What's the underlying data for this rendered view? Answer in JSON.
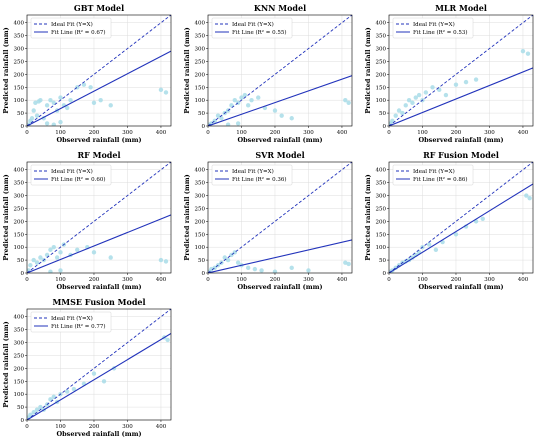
{
  "chart_data": [
    {
      "type": "scatter",
      "title": "GBT Model",
      "xlabel": "Observed rainfall (mm)",
      "ylabel": "Predicted rainfall (mm)",
      "xlim": [
        0,
        430
      ],
      "ylim": [
        0,
        430
      ],
      "xticks": [
        0,
        100,
        200,
        300,
        400
      ],
      "yticks": [
        0,
        50,
        100,
        150,
        200,
        250,
        300,
        350,
        400
      ],
      "grid": true,
      "legend_position": "top-left",
      "series": [
        {
          "name": "Ideal Fit (Y=X)",
          "type": "line",
          "style": "dashed",
          "x": [
            0,
            430
          ],
          "y": [
            0,
            430
          ]
        },
        {
          "name": "Fit Line (R² = 0.67)",
          "type": "line",
          "style": "solid",
          "x": [
            0,
            430
          ],
          "y": [
            0,
            290
          ]
        },
        {
          "type": "scatter",
          "x": [
            5,
            10,
            15,
            20,
            25,
            30,
            35,
            40,
            50,
            60,
            70,
            80,
            90,
            100,
            110,
            120,
            130,
            150,
            170,
            190,
            200,
            220,
            250,
            400,
            415,
            60,
            80,
            100
          ],
          "y": [
            5,
            20,
            30,
            60,
            90,
            40,
            95,
            100,
            30,
            80,
            100,
            90,
            60,
            110,
            80,
            70,
            100,
            150,
            160,
            150,
            90,
            100,
            80,
            140,
            130,
            10,
            5,
            15
          ]
        }
      ]
    },
    {
      "type": "scatter",
      "title": "KNN Model",
      "xlabel": "Observed rainfall (mm)",
      "ylabel": "Predicted rainfall (mm)",
      "xlim": [
        0,
        430
      ],
      "ylim": [
        0,
        430
      ],
      "xticks": [
        0,
        100,
        200,
        300,
        400
      ],
      "yticks": [
        0,
        50,
        100,
        150,
        200,
        250,
        300,
        350,
        400
      ],
      "grid": true,
      "legend_position": "top-left",
      "series": [
        {
          "name": "Ideal Fit (Y=X)",
          "type": "line",
          "style": "dashed",
          "x": [
            0,
            430
          ],
          "y": [
            0,
            430
          ]
        },
        {
          "name": "Fit Line (R² = 0.55)",
          "type": "line",
          "style": "solid",
          "x": [
            0,
            430
          ],
          "y": [
            0,
            195
          ]
        },
        {
          "type": "scatter",
          "x": [
            5,
            10,
            20,
            30,
            40,
            50,
            60,
            70,
            80,
            90,
            100,
            110,
            120,
            130,
            150,
            170,
            200,
            220,
            250,
            410,
            420,
            60,
            90
          ],
          "y": [
            5,
            10,
            20,
            40,
            30,
            50,
            60,
            80,
            100,
            90,
            110,
            120,
            80,
            100,
            110,
            70,
            60,
            40,
            30,
            100,
            90,
            5,
            10
          ]
        }
      ]
    },
    {
      "type": "scatter",
      "title": "MLR Model",
      "xlabel": "Observed rainfall (mm)",
      "ylabel": "Predicted rainfall (mm)",
      "xlim": [
        0,
        430
      ],
      "ylim": [
        0,
        430
      ],
      "xticks": [
        0,
        100,
        200,
        300,
        400
      ],
      "yticks": [
        0,
        50,
        100,
        150,
        200,
        250,
        300,
        350,
        400
      ],
      "grid": true,
      "legend_position": "top-left",
      "series": [
        {
          "name": "Ideal Fit (Y=X)",
          "type": "line",
          "style": "dashed",
          "x": [
            0,
            430
          ],
          "y": [
            0,
            430
          ]
        },
        {
          "name": "Fit Line (R² = 0.53)",
          "type": "line",
          "style": "solid",
          "x": [
            0,
            430
          ],
          "y": [
            0,
            225
          ]
        },
        {
          "type": "scatter",
          "x": [
            5,
            10,
            20,
            30,
            40,
            50,
            60,
            70,
            80,
            90,
            100,
            110,
            130,
            150,
            170,
            200,
            230,
            260,
            400,
            415
          ],
          "y": [
            10,
            20,
            40,
            60,
            50,
            80,
            100,
            90,
            110,
            120,
            100,
            130,
            150,
            140,
            120,
            160,
            170,
            180,
            290,
            280
          ]
        }
      ]
    },
    {
      "type": "scatter",
      "title": "RF Model",
      "xlabel": "Observed rainfall (mm)",
      "ylabel": "Predicted rainfall (mm)",
      "xlim": [
        0,
        430
      ],
      "ylim": [
        0,
        430
      ],
      "xticks": [
        0,
        100,
        200,
        300,
        400
      ],
      "yticks": [
        0,
        50,
        100,
        150,
        200,
        250,
        300,
        350,
        400
      ],
      "grid": true,
      "legend_position": "top-left",
      "series": [
        {
          "name": "Ideal Fit (Y=X)",
          "type": "line",
          "style": "dashed",
          "x": [
            0,
            430
          ],
          "y": [
            0,
            430
          ]
        },
        {
          "name": "Fit Line (R² = 0.60)",
          "type": "line",
          "style": "solid",
          "x": [
            0,
            430
          ],
          "y": [
            0,
            225
          ]
        },
        {
          "type": "scatter",
          "x": [
            5,
            10,
            20,
            30,
            40,
            50,
            60,
            70,
            80,
            90,
            100,
            110,
            130,
            150,
            180,
            200,
            250,
            400,
            415,
            70,
            100
          ],
          "y": [
            10,
            30,
            50,
            40,
            60,
            50,
            70,
            90,
            100,
            60,
            80,
            110,
            70,
            90,
            100,
            80,
            60,
            50,
            45,
            5,
            10
          ]
        }
      ]
    },
    {
      "type": "scatter",
      "title": "SVR Model",
      "xlabel": "Observed rainfall (mm)",
      "ylabel": "Predicted rainfall (mm)",
      "xlim": [
        0,
        430
      ],
      "ylim": [
        0,
        430
      ],
      "xticks": [
        0,
        100,
        200,
        300,
        400
      ],
      "yticks": [
        0,
        50,
        100,
        150,
        200,
        250,
        300,
        350,
        400
      ],
      "grid": true,
      "legend_position": "top-left",
      "series": [
        {
          "name": "Ideal Fit (Y=X)",
          "type": "line",
          "style": "dashed",
          "x": [
            0,
            430
          ],
          "y": [
            0,
            430
          ]
        },
        {
          "name": "Fit Line (R² = 0.36)",
          "type": "line",
          "style": "solid",
          "x": [
            0,
            430
          ],
          "y": [
            0,
            128
          ]
        },
        {
          "type": "scatter",
          "x": [
            5,
            10,
            20,
            30,
            40,
            50,
            60,
            70,
            80,
            90,
            100,
            120,
            140,
            160,
            200,
            250,
            300,
            410,
            420
          ],
          "y": [
            5,
            15,
            20,
            30,
            40,
            60,
            50,
            70,
            80,
            40,
            30,
            20,
            15,
            10,
            5,
            20,
            10,
            40,
            35
          ]
        }
      ]
    },
    {
      "type": "scatter",
      "title": "RF Fusion Model",
      "xlabel": "Observed rainfall (mm)",
      "ylabel": "Predicted rainfall (mm)",
      "xlim": [
        0,
        430
      ],
      "ylim": [
        0,
        430
      ],
      "xticks": [
        0,
        100,
        200,
        300,
        400
      ],
      "yticks": [
        0,
        50,
        100,
        150,
        200,
        250,
        300,
        350,
        400
      ],
      "grid": true,
      "legend_position": "top-left",
      "series": [
        {
          "name": "Ideal Fit (Y=X)",
          "type": "line",
          "style": "dashed",
          "x": [
            0,
            430
          ],
          "y": [
            0,
            430
          ]
        },
        {
          "name": "Fit Line (R² = 0.86)",
          "type": "line",
          "style": "solid",
          "x": [
            0,
            430
          ],
          "y": [
            0,
            345
          ]
        },
        {
          "type": "scatter",
          "x": [
            5,
            10,
            20,
            30,
            40,
            50,
            60,
            70,
            80,
            90,
            100,
            120,
            140,
            160,
            200,
            230,
            260,
            280,
            410,
            420
          ],
          "y": [
            5,
            10,
            20,
            30,
            40,
            45,
            50,
            60,
            70,
            80,
            100,
            110,
            90,
            120,
            150,
            180,
            200,
            210,
            300,
            290
          ]
        }
      ]
    },
    {
      "type": "scatter",
      "title": "MMSE Fusion Model",
      "xlabel": "Observed rainfall (mm)",
      "ylabel": "Predicted rainfall (mm)",
      "xlim": [
        0,
        430
      ],
      "ylim": [
        0,
        430
      ],
      "xticks": [
        0,
        100,
        200,
        300,
        400
      ],
      "yticks": [
        0,
        50,
        100,
        150,
        200,
        250,
        300,
        350,
        400
      ],
      "grid": true,
      "legend_position": "top-left",
      "series": [
        {
          "name": "Ideal Fit (Y=X)",
          "type": "line",
          "style": "dashed",
          "x": [
            0,
            430
          ],
          "y": [
            0,
            430
          ]
        },
        {
          "name": "Fit Line (R² = 0.77)",
          "type": "line",
          "style": "solid",
          "x": [
            0,
            430
          ],
          "y": [
            0,
            335
          ]
        },
        {
          "type": "scatter",
          "x": [
            5,
            10,
            20,
            30,
            40,
            50,
            60,
            70,
            80,
            90,
            100,
            120,
            140,
            170,
            200,
            230,
            260,
            410,
            420
          ],
          "y": [
            10,
            20,
            30,
            40,
            50,
            40,
            60,
            80,
            90,
            70,
            100,
            110,
            120,
            140,
            180,
            150,
            200,
            320,
            310
          ]
        }
      ]
    }
  ]
}
